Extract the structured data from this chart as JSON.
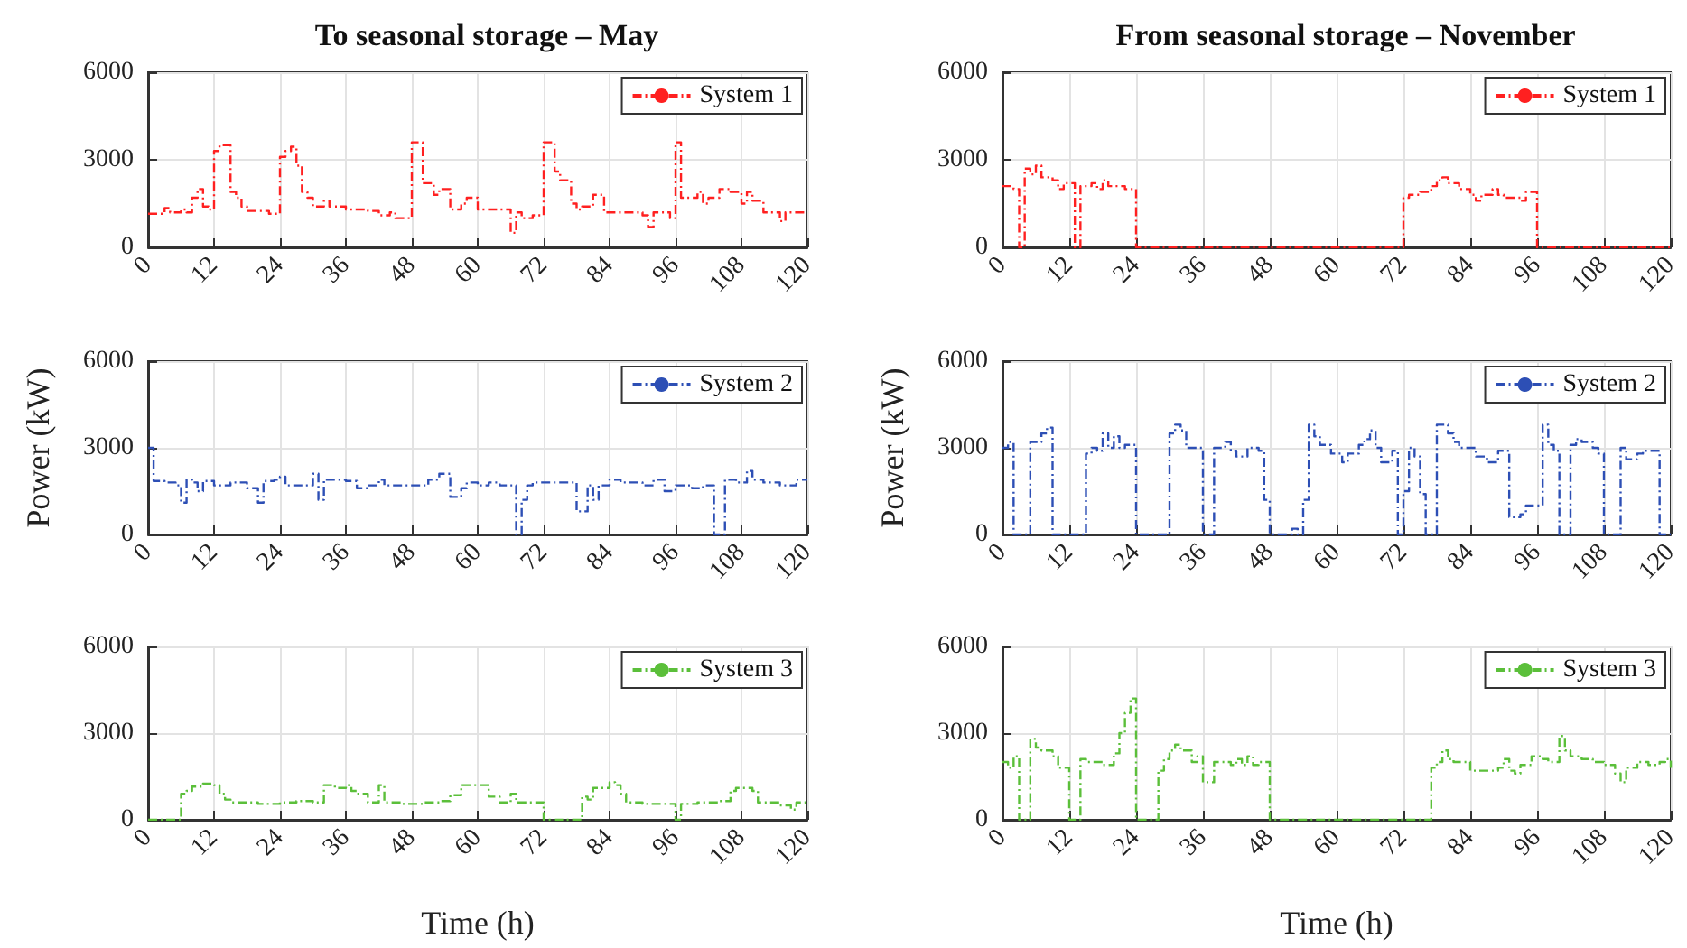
{
  "chart_data": [
    {
      "type": "step",
      "title": "To seasonal storage – May",
      "x": [
        0,
        3,
        4,
        6,
        7,
        8,
        9,
        10,
        11,
        12,
        13,
        15,
        16,
        17,
        18,
        22,
        24,
        25,
        26,
        27,
        28,
        29,
        30,
        32,
        33,
        36,
        40,
        42,
        44,
        45,
        48,
        50,
        52,
        53,
        55,
        57,
        58,
        60,
        66,
        67,
        68,
        70,
        72,
        74,
        75,
        77,
        78,
        79,
        81,
        83,
        90,
        91,
        92,
        95,
        96,
        97,
        100,
        101,
        102,
        104,
        106,
        108,
        109,
        110,
        112,
        115,
        116,
        120
      ],
      "series": [
        {
          "name": "System 1",
          "color": "#ff2020",
          "values": [
            1150,
            1350,
            1200,
            1300,
            1200,
            1700,
            2000,
            1400,
            1300,
            3300,
            3500,
            1900,
            1700,
            1400,
            1250,
            1150,
            3100,
            3300,
            3450,
            2800,
            1900,
            1700,
            1400,
            1600,
            1400,
            1300,
            1250,
            1100,
            1200,
            1000,
            3600,
            2200,
            1800,
            2000,
            1300,
            1500,
            1700,
            1300,
            500,
            1200,
            1000,
            1100,
            3600,
            2600,
            2300,
            1500,
            1300,
            1400,
            1800,
            1200,
            1100,
            700,
            1200,
            1000,
            3600,
            1700,
            1900,
            1500,
            1700,
            2000,
            1900,
            1500,
            1900,
            1600,
            1200,
            900,
            1200,
            1200
          ]
        }
      ],
      "xlim": [
        0,
        120
      ],
      "xticks": [
        0,
        12,
        24,
        36,
        48,
        60,
        72,
        84,
        96,
        108,
        120
      ],
      "ylim": [
        0,
        6000
      ],
      "yticks": [
        0,
        3000,
        6000
      ],
      "grid": true,
      "legend": "top right",
      "line_style": "dashed"
    },
    {
      "type": "step",
      "title": "From seasonal storage – November",
      "x": [
        0,
        2,
        3,
        4,
        5,
        6,
        7,
        9,
        10,
        11,
        13,
        14,
        16,
        17,
        18,
        19,
        22,
        24,
        72,
        73,
        75,
        77,
        78,
        79,
        80,
        82,
        84,
        85,
        86,
        88,
        89,
        90,
        93,
        94,
        96,
        120
      ],
      "series": [
        {
          "name": "System 1",
          "color": "#ff2020",
          "values": [
            2100,
            2000,
            0,
            2700,
            2500,
            2800,
            2400,
            2300,
            2000,
            2200,
            0,
            2100,
            2200,
            2000,
            2300,
            2100,
            2000,
            0,
            1700,
            1800,
            1900,
            2100,
            2300,
            2400,
            2200,
            2000,
            1800,
            1600,
            1800,
            2000,
            1800,
            1700,
            1600,
            1900,
            0,
            0
          ]
        }
      ],
      "xlim": [
        0,
        120
      ],
      "xticks": [
        0,
        12,
        24,
        36,
        48,
        60,
        72,
        84,
        96,
        108,
        120
      ],
      "ylim": [
        0,
        6000
      ],
      "yticks": [
        0,
        3000,
        6000
      ],
      "grid": true,
      "legend": "top right",
      "line_style": "dashed"
    },
    {
      "type": "step",
      "ylabel": "Power (kW)",
      "x": [
        0,
        1,
        3,
        5,
        6,
        7,
        8,
        9,
        10,
        12,
        15,
        18,
        20,
        21,
        23,
        24,
        25,
        30,
        31,
        32,
        36,
        38,
        40,
        42,
        43,
        48,
        51,
        53,
        55,
        57,
        58,
        60,
        62,
        64,
        67,
        68,
        69,
        70,
        75,
        78,
        80,
        81,
        82,
        84,
        86,
        90,
        92,
        94,
        96,
        99,
        101,
        103,
        105,
        107,
        109,
        110,
        112,
        115,
        118,
        120
      ],
      "series": [
        {
          "name": "System 2",
          "color": "#2d4fb5",
          "values": [
            3000,
            1850,
            1800,
            1700,
            1100,
            1900,
            1800,
            1500,
            1850,
            1700,
            1800,
            1600,
            1100,
            1850,
            1900,
            2000,
            1700,
            2100,
            1200,
            1900,
            1850,
            1600,
            1700,
            1900,
            1700,
            1700,
            1900,
            2100,
            1300,
            1600,
            1800,
            1700,
            1800,
            1700,
            0,
            1200,
            1700,
            1800,
            1800,
            800,
            1700,
            1200,
            1700,
            1900,
            1800,
            1700,
            1900,
            1500,
            1700,
            1600,
            1700,
            0,
            1900,
            1800,
            2200,
            1900,
            1800,
            1700,
            1900,
            1900
          ]
        }
      ],
      "xlim": [
        0,
        120
      ],
      "xticks": [
        0,
        12,
        24,
        36,
        48,
        60,
        72,
        84,
        96,
        108,
        120
      ],
      "ylim": [
        0,
        6000
      ],
      "yticks": [
        0,
        3000,
        6000
      ],
      "grid": true,
      "legend": "top right",
      "line_style": "dashed"
    },
    {
      "type": "step",
      "ylabel": "Power (kW)",
      "x": [
        0,
        1,
        2,
        5,
        7,
        8,
        9,
        15,
        16,
        17,
        18,
        19,
        20,
        21,
        22,
        24,
        30,
        31,
        32,
        33,
        36,
        38,
        40,
        41,
        42,
        44,
        46,
        47,
        48,
        52,
        53,
        54,
        55,
        56,
        57,
        59,
        61,
        62,
        64,
        65,
        66,
        67,
        68,
        70,
        71,
        72,
        73,
        74,
        75,
        76,
        78,
        80,
        81,
        82,
        85,
        87,
        89,
        91,
        93,
        94,
        96,
        97,
        98,
        99,
        100,
        102,
        103,
        104,
        106,
        107,
        108,
        111,
        112,
        114,
        115,
        117,
        118,
        120
      ],
      "series": [
        {
          "name": "System 2",
          "color": "#2d4fb5",
          "values": [
            3000,
            3200,
            0,
            3200,
            3500,
            3700,
            0,
            2800,
            3000,
            2900,
            3500,
            3000,
            3400,
            3000,
            3100,
            0,
            3500,
            3800,
            3600,
            3000,
            0,
            3000,
            3200,
            2900,
            2700,
            3000,
            2900,
            1200,
            0,
            200,
            0,
            1200,
            3800,
            3400,
            3100,
            2800,
            2500,
            2800,
            3100,
            3300,
            3600,
            3000,
            2500,
            2900,
            0,
            1500,
            3000,
            2700,
            1400,
            0,
            3800,
            3500,
            3200,
            3000,
            2700,
            2500,
            2900,
            600,
            700,
            1000,
            1000,
            3800,
            3100,
            2900,
            0,
            3100,
            3300,
            3200,
            3000,
            2800,
            0,
            3000,
            2600,
            2800,
            2900,
            2900,
            0,
            0
          ]
        }
      ],
      "xlim": [
        0,
        120
      ],
      "xticks": [
        0,
        12,
        24,
        36,
        48,
        60,
        72,
        84,
        96,
        108,
        120
      ],
      "ylim": [
        0,
        6000
      ],
      "yticks": [
        0,
        3000,
        6000
      ],
      "grid": true,
      "legend": "top right",
      "line_style": "dashed"
    },
    {
      "type": "step",
      "xlabel": "Time (h)",
      "x": [
        0,
        6,
        7,
        8,
        10,
        12,
        13,
        14,
        15,
        20,
        24,
        27,
        30,
        32,
        34,
        36,
        37,
        38,
        40,
        42,
        43,
        46,
        50,
        53,
        55,
        57,
        60,
        62,
        64,
        66,
        67,
        72,
        79,
        80,
        81,
        83,
        84,
        85,
        86,
        87,
        90,
        96,
        97,
        100,
        104,
        106,
        107,
        110,
        111,
        115,
        117,
        118,
        120
      ],
      "series": [
        {
          "name": "System 3",
          "color": "#5bbf3a",
          "values": [
            0,
            900,
            1000,
            1150,
            1250,
            1200,
            900,
            700,
            600,
            550,
            600,
            650,
            600,
            1200,
            1100,
            1200,
            1000,
            900,
            600,
            1200,
            600,
            550,
            600,
            650,
            850,
            1200,
            1200,
            800,
            600,
            900,
            600,
            0,
            800,
            700,
            1100,
            1100,
            1300,
            1200,
            900,
            600,
            550,
            0,
            550,
            600,
            650,
            1000,
            1100,
            1000,
            600,
            500,
            350,
            600,
            600
          ]
        }
      ],
      "xlim": [
        0,
        120
      ],
      "xticks": [
        0,
        12,
        24,
        36,
        48,
        60,
        72,
        84,
        96,
        108,
        120
      ],
      "ylim": [
        0,
        6000
      ],
      "yticks": [
        0,
        3000,
        6000
      ],
      "grid": true,
      "legend": "top right",
      "line_style": "dashed"
    },
    {
      "type": "step",
      "xlabel": "Time (h)",
      "x": [
        0,
        1,
        2,
        3,
        5,
        6,
        7,
        9,
        10,
        12,
        14,
        15,
        18,
        20,
        21,
        22,
        23,
        24,
        28,
        29,
        30,
        31,
        32,
        34,
        35,
        36,
        38,
        41,
        42,
        43,
        44,
        45,
        46,
        48,
        77,
        78,
        79,
        80,
        81,
        84,
        89,
        90,
        91,
        92,
        93,
        95,
        97,
        98,
        100,
        101,
        102,
        104,
        106,
        108,
        110,
        111,
        112,
        114,
        116,
        118,
        119,
        120
      ],
      "series": [
        {
          "name": "System 3",
          "color": "#5bbf3a",
          "values": [
            2000,
            1800,
            2200,
            0,
            2800,
            2500,
            2400,
            2200,
            1800,
            0,
            2100,
            2000,
            1900,
            2300,
            3000,
            3700,
            4200,
            0,
            1700,
            2100,
            2400,
            2600,
            2400,
            2000,
            2200,
            1300,
            2000,
            1900,
            2100,
            1900,
            2200,
            1900,
            2000,
            0,
            1800,
            2000,
            2400,
            2100,
            2000,
            1700,
            1800,
            2100,
            1700,
            1600,
            1900,
            2200,
            2100,
            2000,
            2900,
            2400,
            2200,
            2100,
            2000,
            1900,
            1600,
            1300,
            1800,
            2000,
            1900,
            2000,
            2100,
            1800
          ]
        }
      ],
      "xlim": [
        0,
        120
      ],
      "xticks": [
        0,
        12,
        24,
        36,
        48,
        60,
        72,
        84,
        96,
        108,
        120
      ],
      "ylim": [
        0,
        6000
      ],
      "yticks": [
        0,
        3000,
        6000
      ],
      "grid": true,
      "legend": "top right",
      "line_style": "dashed"
    }
  ]
}
